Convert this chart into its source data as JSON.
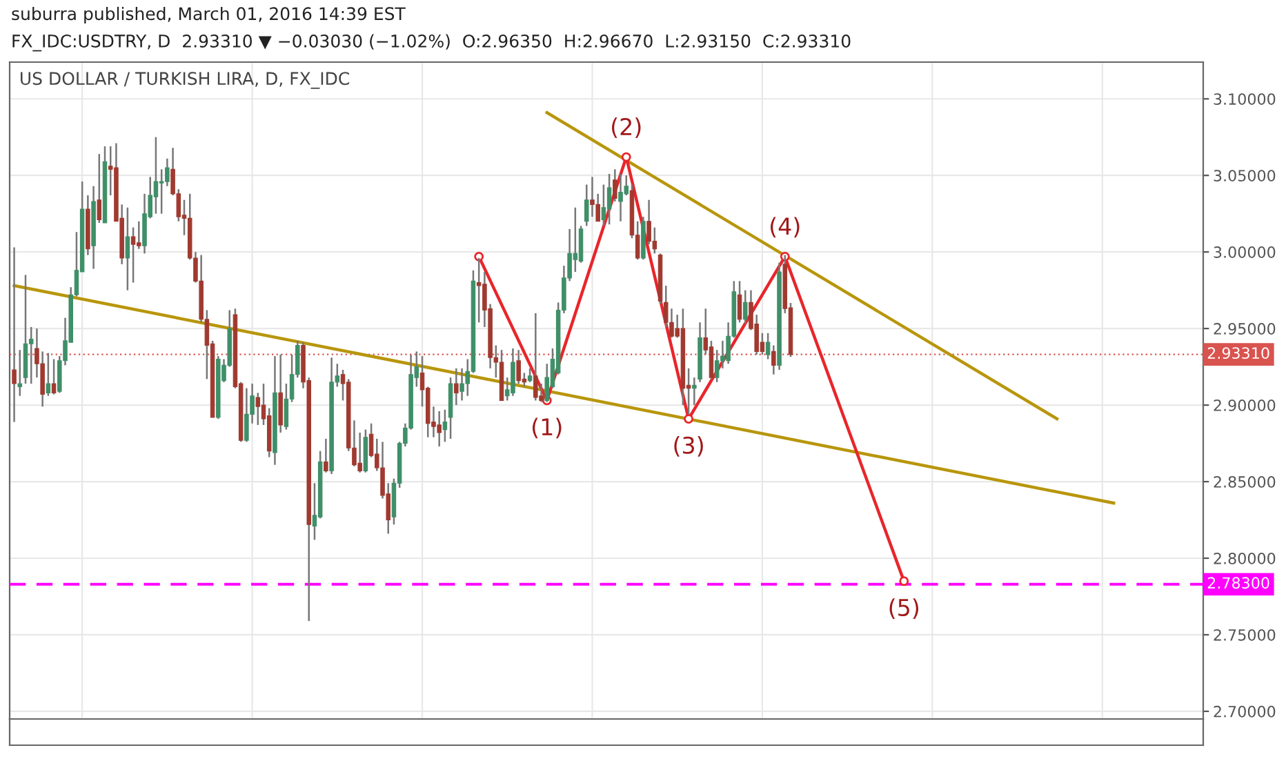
{
  "chart_data": {
    "type": "candlestick",
    "title": "US DOLLAR / TURKISH LIRA, D, FX_IDC",
    "annotations": [
      "suburra published, March 01, 2016 14:39 EST",
      "FX_IDC:USDTRY, D  2.93310 ▼ −0.03030 (−1.02%)  O:2.96350  H:2.96670  L:2.93150  C:2.93310",
      {
        "text": "(1)",
        "y": 2.903
      },
      {
        "text": "(2)",
        "y": 3.062
      },
      {
        "text": "(3)",
        "y": 2.891
      },
      {
        "text": "(4)",
        "y": 2.997
      },
      {
        "text": "(5)",
        "y": 2.785
      }
    ],
    "categories": [
      null,
      null,
      null,
      null,
      null,
      null,
      null,
      null,
      null,
      null,
      null,
      null,
      null,
      null,
      null,
      null,
      null,
      null,
      null,
      null,
      null,
      null,
      null,
      null,
      null,
      null,
      null,
      null,
      null,
      null,
      null,
      null,
      null,
      null,
      null,
      null,
      null,
      null,
      null,
      null,
      null,
      null,
      null,
      null,
      null,
      null,
      null,
      null,
      null,
      null,
      null,
      null,
      null,
      null,
      null,
      null,
      null,
      null,
      null,
      null,
      null,
      null,
      null,
      null,
      null,
      null,
      null,
      null,
      null,
      null,
      null,
      null,
      null,
      null,
      null,
      null,
      null,
      null,
      null,
      null,
      null,
      null,
      null,
      null,
      null,
      null,
      null,
      null,
      null,
      null,
      null,
      null,
      null,
      null,
      null,
      null,
      null,
      null,
      null,
      null,
      null,
      null,
      null,
      null,
      null,
      null,
      null,
      null,
      null,
      null,
      null,
      null,
      null,
      null,
      null,
      null,
      null,
      null,
      null,
      null,
      null,
      null,
      null,
      null,
      null,
      null,
      null,
      null,
      null,
      null,
      null,
      null,
      null,
      null,
      null,
      null,
      null,
      null,
      null,
      null,
      null,
      null,
      null,
      null,
      null,
      null,
      null,
      null,
      null,
      null,
      null,
      null,
      null,
      null,
      null,
      null,
      null,
      null,
      null,
      null,
      null,
      null,
      null,
      null,
      null,
      null,
      null,
      null,
      null,
      null,
      null,
      null,
      null,
      null,
      null,
      null,
      null,
      null,
      null,
      null,
      null,
      null,
      null,
      null,
      null,
      null,
      null,
      null,
      null,
      null,
      null,
      null,
      null,
      null,
      null,
      null,
      null,
      null,
      null,
      null,
      null,
      null,
      null,
      null,
      null,
      null,
      null,
      null,
      null,
      null
    ],
    "ohlc": [
      [
        2.923,
        3.003,
        2.889,
        2.914
      ],
      [
        2.912,
        2.936,
        2.906,
        2.914
      ],
      [
        2.918,
        2.985,
        2.914,
        2.94
      ],
      [
        2.94,
        2.951,
        2.914,
        2.943
      ],
      [
        2.937,
        2.95,
        2.918,
        2.927
      ],
      [
        2.927,
        2.935,
        2.899,
        2.907
      ],
      [
        2.908,
        2.934,
        2.906,
        2.914
      ],
      [
        2.914,
        2.93,
        2.907,
        2.908
      ],
      [
        2.909,
        2.932,
        2.908,
        2.929
      ],
      [
        2.929,
        2.957,
        2.926,
        2.942
      ],
      [
        2.941,
        2.977,
        2.941,
        2.972
      ],
      [
        2.972,
        3.013,
        2.971,
        2.988
      ],
      [
        2.987,
        3.046,
        2.987,
        3.028
      ],
      [
        3.028,
        3.037,
        2.998,
        3.002
      ],
      [
        3.004,
        3.043,
        2.989,
        3.033
      ],
      [
        3.034,
        3.064,
        3.019,
        3.021
      ],
      [
        3.019,
        3.069,
        3.019,
        3.059
      ],
      [
        3.056,
        3.069,
        3.037,
        3.054
      ],
      [
        3.055,
        3.071,
        3.02,
        3.02
      ],
      [
        3.022,
        3.031,
        2.992,
        2.996
      ],
      [
        2.996,
        3.029,
        2.975,
        3.01
      ],
      [
        3.01,
        3.016,
        2.98,
        3.005
      ],
      [
        3.006,
        3.02,
        3.002,
        3.004
      ],
      [
        3.004,
        3.038,
        2.999,
        3.025
      ],
      [
        3.023,
        3.049,
        3.022,
        3.037
      ],
      [
        3.036,
        3.075,
        3.025,
        3.046
      ],
      [
        3.045,
        3.054,
        3.025,
        3.046
      ],
      [
        3.046,
        3.061,
        3.043,
        3.055
      ],
      [
        3.054,
        3.068,
        3.037,
        3.038
      ],
      [
        3.038,
        3.041,
        3.02,
        3.023
      ],
      [
        3.024,
        3.034,
        3.011,
        3.022
      ],
      [
        3.022,
        3.038,
        2.995,
        2.996
      ],
      [
        2.996,
        3.0,
        2.98,
        2.981
      ],
      [
        2.981,
        2.998,
        2.954,
        2.956
      ],
      [
        2.956,
        2.962,
        2.917,
        2.939
      ],
      [
        2.94,
        2.942,
        2.892,
        2.892
      ],
      [
        2.892,
        2.932,
        2.891,
        2.93
      ],
      [
        2.916,
        2.93,
        2.915,
        2.926
      ],
      [
        2.926,
        2.962,
        2.925,
        2.95
      ],
      [
        2.959,
        2.963,
        2.911,
        2.912
      ],
      [
        2.914,
        2.915,
        2.876,
        2.877
      ],
      [
        2.877,
        2.911,
        2.876,
        2.894
      ],
      [
        2.894,
        2.914,
        2.888,
        2.906
      ],
      [
        2.905,
        2.908,
        2.887,
        2.899
      ],
      [
        2.9,
        2.914,
        2.887,
        2.891
      ],
      [
        2.893,
        2.898,
        2.866,
        2.87
      ],
      [
        2.869,
        2.932,
        2.861,
        2.908
      ],
      [
        2.908,
        2.933,
        2.882,
        2.887
      ],
      [
        2.886,
        2.914,
        2.884,
        2.904
      ],
      [
        2.904,
        2.933,
        2.902,
        2.92
      ],
      [
        2.92,
        2.942,
        2.918,
        2.939
      ],
      [
        2.939,
        2.941,
        2.911,
        2.915
      ],
      [
        2.916,
        2.918,
        2.759,
        2.822
      ],
      [
        2.821,
        2.849,
        2.812,
        2.828
      ],
      [
        2.827,
        2.87,
        2.826,
        2.863
      ],
      [
        2.863,
        2.878,
        2.856,
        2.857
      ],
      [
        2.857,
        2.931,
        2.855,
        2.915
      ],
      [
        2.915,
        2.927,
        2.912,
        2.919
      ],
      [
        2.92,
        2.923,
        2.903,
        2.914
      ],
      [
        2.915,
        2.917,
        2.87,
        2.872
      ],
      [
        2.872,
        2.89,
        2.86,
        2.861
      ],
      [
        2.862,
        2.882,
        2.856,
        2.857
      ],
      [
        2.857,
        2.884,
        2.856,
        2.879
      ],
      [
        2.881,
        2.888,
        2.866,
        2.867
      ],
      [
        2.868,
        2.878,
        2.857,
        2.859
      ],
      [
        2.859,
        2.876,
        2.839,
        2.841
      ],
      [
        2.842,
        2.849,
        2.816,
        2.825
      ],
      [
        2.827,
        2.852,
        2.822,
        2.849
      ],
      [
        2.849,
        2.876,
        2.846,
        2.875
      ],
      [
        2.875,
        2.888,
        2.873,
        2.885
      ],
      [
        2.885,
        2.933,
        2.884,
        2.92
      ],
      [
        2.918,
        2.935,
        2.912,
        2.925
      ],
      [
        2.921,
        2.932,
        2.899,
        2.91
      ],
      [
        2.911,
        2.912,
        2.879,
        2.888
      ],
      [
        2.889,
        2.899,
        2.879,
        2.886
      ],
      [
        2.887,
        2.896,
        2.873,
        2.882
      ],
      [
        2.884,
        2.897,
        2.876,
        2.889
      ],
      [
        2.892,
        2.918,
        2.878,
        2.914
      ],
      [
        2.914,
        2.924,
        2.9,
        2.908
      ],
      [
        2.909,
        2.924,
        2.903,
        2.914
      ],
      [
        2.914,
        2.93,
        2.906,
        2.922
      ],
      [
        2.922,
        2.988,
        2.921,
        2.981
      ],
      [
        2.98,
        2.996,
        2.954,
        2.978
      ],
      [
        2.979,
        2.987,
        2.951,
        2.962
      ],
      [
        2.963,
        2.966,
        2.924,
        2.931
      ],
      [
        2.931,
        2.939,
        2.918,
        2.928
      ],
      [
        2.928,
        2.936,
        2.903,
        2.903
      ],
      [
        2.906,
        2.918,
        2.903,
        2.91
      ],
      [
        2.908,
        2.937,
        2.906,
        2.928
      ],
      [
        2.929,
        2.936,
        2.914,
        2.916
      ],
      [
        2.917,
        2.921,
        2.912,
        2.915
      ],
      [
        2.916,
        2.924,
        2.915,
        2.919
      ],
      [
        2.919,
        2.96,
        2.903,
        2.905
      ],
      [
        2.906,
        2.914,
        2.902,
        2.903
      ],
      [
        2.903,
        2.927,
        2.902,
        2.918
      ],
      [
        2.912,
        2.937,
        2.911,
        2.93
      ],
      [
        2.921,
        2.967,
        2.92,
        2.962
      ],
      [
        2.962,
        2.991,
        2.96,
        2.983
      ],
      [
        2.983,
        3.015,
        2.981,
        2.999
      ],
      [
        2.995,
        3.029,
        2.987,
        2.999
      ],
      [
        2.994,
        3.017,
        2.993,
        3.015
      ],
      [
        3.02,
        3.044,
        3.017,
        3.034
      ],
      [
        3.034,
        3.049,
        3.023,
        3.031
      ],
      [
        3.031,
        3.038,
        3.02,
        3.02
      ],
      [
        3.021,
        3.044,
        3.017,
        3.029
      ],
      [
        3.028,
        3.051,
        3.018,
        3.042
      ],
      [
        3.047,
        3.054,
        3.033,
        3.035
      ],
      [
        3.033,
        3.051,
        3.02,
        3.039
      ],
      [
        3.038,
        3.05,
        3.037,
        3.043
      ],
      [
        3.04,
        3.044,
        3.009,
        3.011
      ],
      [
        3.011,
        3.02,
        2.995,
        2.996
      ],
      [
        2.996,
        3.023,
        2.995,
        3.02
      ],
      [
        3.02,
        3.034,
        3.005,
        3.007
      ],
      [
        3.007,
        3.016,
        2.999,
        3.002
      ],
      [
        2.998,
        2.999,
        2.966,
        2.968
      ],
      [
        2.967,
        2.978,
        2.951,
        2.954
      ],
      [
        2.954,
        2.963,
        2.944,
        2.945
      ],
      [
        2.95,
        2.959,
        2.944,
        2.945
      ],
      [
        2.95,
        2.963,
        2.9,
        2.911
      ],
      [
        2.913,
        2.924,
        2.894,
        2.911
      ],
      [
        2.911,
        2.918,
        2.9,
        2.913
      ],
      [
        2.917,
        2.954,
        2.915,
        2.944
      ],
      [
        2.944,
        2.963,
        2.933,
        2.936
      ],
      [
        2.938,
        2.942,
        2.917,
        2.918
      ],
      [
        2.918,
        2.936,
        2.915,
        2.929
      ],
      [
        2.929,
        2.942,
        2.924,
        2.932
      ],
      [
        2.929,
        2.954,
        2.927,
        2.945
      ],
      [
        2.945,
        2.981,
        2.944,
        2.974
      ],
      [
        2.972,
        2.981,
        2.954,
        2.956
      ],
      [
        2.956,
        2.975,
        2.953,
        2.967
      ],
      [
        2.967,
        2.975,
        2.949,
        2.95
      ],
      [
        2.953,
        2.959,
        2.933,
        2.935
      ],
      [
        2.941,
        2.947,
        2.933,
        2.935
      ],
      [
        2.933,
        2.947,
        2.93,
        2.941
      ],
      [
        2.935,
        2.939,
        2.92,
        2.926
      ],
      [
        2.926,
        2.993,
        2.923,
        2.987
      ],
      [
        2.992,
        2.998,
        2.96,
        2.963
      ],
      [
        2.9635,
        2.9667,
        2.9315,
        2.9331
      ],
      null,
      null,
      null,
      null,
      null,
      null,
      null,
      null,
      null,
      null,
      null,
      null,
      null,
      null,
      null,
      null,
      null,
      null,
      null,
      null,
      null,
      null,
      null,
      null,
      null,
      null,
      null,
      null,
      null,
      null,
      null,
      null,
      null,
      null,
      null,
      null,
      null,
      null,
      null,
      null,
      null,
      null,
      null,
      null,
      null,
      null,
      null,
      null,
      null,
      null,
      null,
      null,
      null,
      null,
      null,
      null,
      null,
      null,
      null,
      null,
      null,
      null,
      null,
      null,
      null,
      null,
      null,
      null,
      null,
      null,
      null,
      null
    ],
    "series": [
      {
        "type": "line",
        "color": "#b8960c",
        "values": [
          2.978,
          null,
          null,
          null,
          null,
          null,
          null,
          null,
          null,
          null,
          null,
          null,
          null,
          null,
          null,
          null,
          null,
          null,
          null,
          null,
          null,
          null,
          null,
          null,
          null,
          null,
          null,
          null,
          null,
          null,
          null,
          null,
          null,
          null,
          null,
          null,
          null,
          null,
          null,
          null,
          null,
          null,
          null,
          null,
          null,
          null,
          null,
          null,
          null,
          null,
          null,
          null,
          null,
          null,
          null,
          null,
          null,
          null,
          null,
          null,
          null,
          null,
          null,
          null,
          null,
          null,
          null,
          null,
          null,
          null,
          null,
          null,
          null,
          null,
          null,
          null,
          null,
          null,
          null,
          null,
          null,
          null,
          null,
          null,
          null,
          null,
          null,
          null,
          null,
          null,
          null,
          null,
          null,
          null,
          null,
          null,
          null,
          null,
          null,
          null,
          null,
          null,
          null,
          null,
          null,
          null,
          null,
          null,
          null,
          null,
          null,
          null,
          null,
          null,
          null,
          null,
          null,
          null,
          null,
          null,
          null,
          null,
          null,
          null,
          null,
          null,
          null,
          null,
          null,
          null,
          null,
          null,
          null,
          null,
          null,
          null,
          null,
          null,
          null,
          null,
          null,
          null,
          null,
          null,
          null,
          null,
          null,
          null,
          null,
          null,
          null,
          null,
          null,
          null,
          null,
          null,
          null,
          null,
          null,
          null,
          null,
          null,
          null,
          null,
          null,
          null,
          null,
          null,
          null,
          null,
          null,
          null,
          null,
          null,
          null,
          null,
          null,
          null,
          null,
          null,
          null,
          null,
          null,
          null,
          null,
          null,
          null,
          null,
          null,
          null,
          null,
          null,
          null,
          null,
          2.836,
          null,
          null,
          null,
          null,
          null,
          null,
          null,
          null,
          null,
          null,
          null,
          null,
          null,
          null,
          null
        ]
      },
      {
        "type": "line",
        "color": "#b8960c",
        "values": [
          null,
          null,
          null,
          null,
          null,
          null,
          null,
          null,
          null,
          null,
          null,
          null,
          null,
          null,
          null,
          null,
          null,
          null,
          null,
          null,
          null,
          null,
          null,
          null,
          null,
          null,
          null,
          null,
          null,
          null,
          null,
          null,
          null,
          null,
          null,
          null,
          null,
          null,
          null,
          null,
          null,
          null,
          null,
          null,
          null,
          null,
          null,
          null,
          null,
          null,
          null,
          null,
          null,
          null,
          null,
          null,
          null,
          null,
          null,
          null,
          null,
          null,
          null,
          null,
          null,
          null,
          null,
          null,
          null,
          null,
          null,
          null,
          null,
          null,
          null,
          null,
          null,
          null,
          null,
          null,
          null,
          null,
          null,
          null,
          null,
          null,
          null,
          null,
          null,
          null,
          null,
          null,
          null,
          null,
          3.091,
          null,
          null,
          null,
          null,
          null,
          null,
          null,
          null,
          null,
          null,
          null,
          null,
          null,
          null,
          null,
          null,
          null,
          null,
          null,
          null,
          null,
          null,
          null,
          null,
          null,
          null,
          null,
          null,
          null,
          null,
          null,
          null,
          null,
          null,
          null,
          null,
          null,
          null,
          null,
          null,
          null,
          null,
          null,
          null,
          null,
          null,
          null,
          null,
          null,
          null,
          null,
          null,
          null,
          null,
          null,
          null,
          null,
          null,
          null,
          null,
          null,
          null,
          null,
          null,
          null,
          null,
          null,
          null,
          null,
          null,
          null,
          null,
          null,
          null,
          null,
          null,
          null,
          null,
          null,
          null,
          null,
          null,
          null,
          null,
          null,
          null,
          null,
          null,
          null,
          2.891,
          null,
          null,
          null,
          null,
          null,
          null,
          null,
          null,
          null,
          null,
          null,
          null,
          null,
          null,
          null,
          null,
          null,
          null,
          null,
          null,
          null,
          null,
          null,
          null,
          null
        ]
      },
      {
        "type": "line",
        "color": "#e8262b",
        "marker": "circle",
        "values": [
          null,
          null,
          null,
          null,
          null,
          null,
          null,
          null,
          null,
          null,
          null,
          null,
          null,
          null,
          null,
          null,
          null,
          null,
          null,
          null,
          null,
          null,
          null,
          null,
          null,
          null,
          null,
          null,
          null,
          null,
          null,
          null,
          null,
          null,
          null,
          null,
          null,
          null,
          null,
          null,
          null,
          null,
          null,
          null,
          null,
          null,
          null,
          null,
          null,
          null,
          null,
          null,
          null,
          null,
          null,
          null,
          null,
          null,
          null,
          null,
          null,
          null,
          null,
          null,
          null,
          null,
          null,
          null,
          null,
          null,
          null,
          null,
          null,
          null,
          null,
          null,
          null,
          null,
          null,
          null,
          null,
          null,
          2.997,
          null,
          null,
          null,
          null,
          null,
          null,
          null,
          null,
          null,
          null,
          null,
          2.903,
          null,
          null,
          null,
          null,
          null,
          null,
          null,
          null,
          null,
          null,
          null,
          null,
          null,
          3.062,
          null,
          null,
          null,
          null,
          null,
          null,
          null,
          null,
          null,
          null,
          2.891,
          null,
          null,
          null,
          null,
          null,
          null,
          null,
          null,
          null,
          null,
          null,
          null,
          null,
          null,
          null,
          null,
          2.997,
          null,
          null,
          null,
          null,
          null,
          null,
          null,
          null,
          null,
          null,
          null,
          null,
          null,
          null,
          null,
          null,
          null,
          null,
          null,
          null,
          2.785,
          null,
          null,
          null,
          null,
          null,
          null,
          null,
          null,
          null,
          null,
          null,
          null,
          null,
          null,
          null,
          null,
          null,
          null,
          null,
          null,
          null,
          null,
          null,
          null,
          null,
          null,
          null,
          null,
          null,
          null,
          null,
          null,
          null,
          null,
          null,
          null,
          null,
          null,
          null,
          null,
          null,
          null,
          null,
          null,
          null,
          null,
          null,
          null,
          null,
          null,
          null,
          null
        ]
      }
    ],
    "ref_lines": [
      {
        "axis": "y",
        "value": 2.9331,
        "label": "2.93310",
        "color": "#d9534f",
        "line_style": "dotted"
      },
      {
        "axis": "y",
        "value": 2.783,
        "label": "2.78300",
        "color": "#ff00ff",
        "line_style": "dashed"
      }
    ],
    "ylim": [
      2.695,
      3.124
    ],
    "yticks": [
      {
        "value": 2.7,
        "label": "2.70000"
      },
      {
        "value": 2.75,
        "label": "2.75000"
      },
      {
        "value": 2.8,
        "label": "2.80000"
      },
      {
        "value": 2.85,
        "label": "2.85000"
      },
      {
        "value": 2.9,
        "label": "2.90000"
      },
      {
        "value": 2.95,
        "label": "2.95000"
      },
      {
        "value": 3.0,
        "label": "3.00000"
      },
      {
        "value": 3.05,
        "label": "3.05000"
      },
      {
        "value": 3.1,
        "label": "3.10000"
      }
    ],
    "grid": true,
    "tick_labels": "y"
  }
}
